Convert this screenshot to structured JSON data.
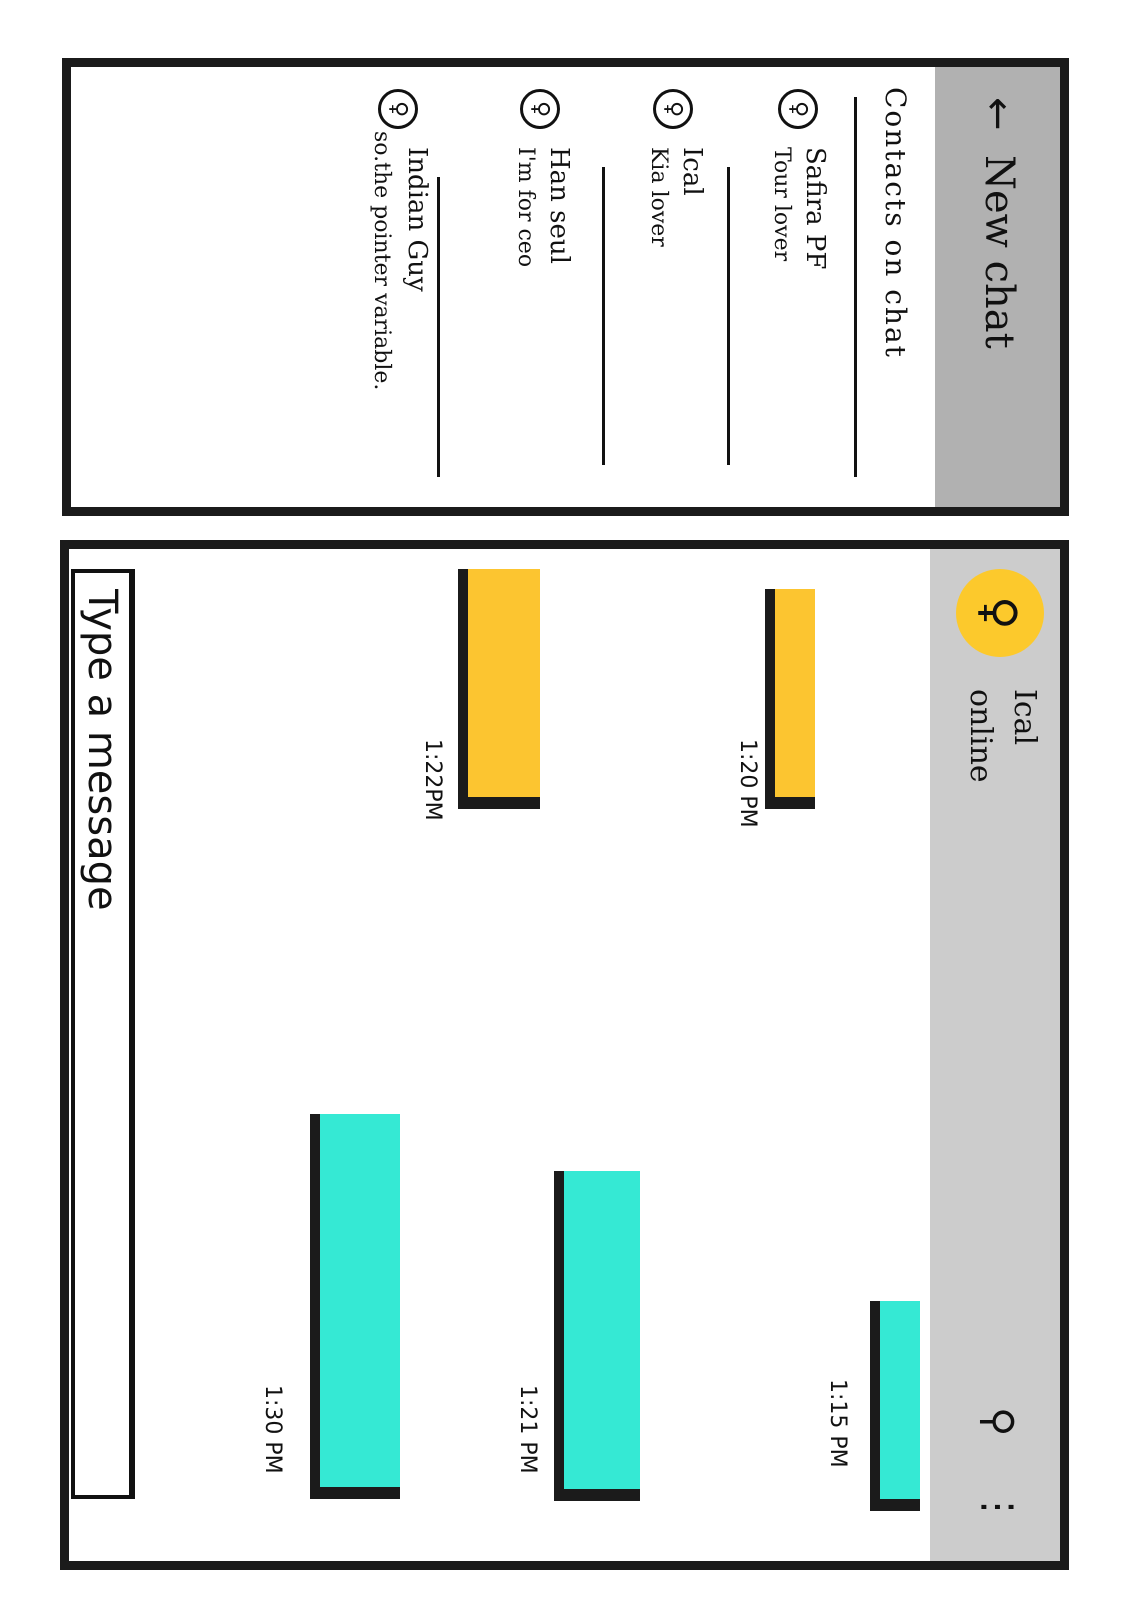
{
  "new_chat": {
    "title": "New chat",
    "back_icon": "arrow-left-icon",
    "section_label": "Contacts on chat",
    "contacts": [
      {
        "name": "Safira PF",
        "status": "Tour lover"
      },
      {
        "name": "Ical",
        "status": "Kia lover"
      },
      {
        "name": "Han seul",
        "status": "I'm for ceo"
      },
      {
        "name": "Indian Guy",
        "status": "so.the pointer variable."
      }
    ]
  },
  "chat": {
    "contact_name": "Ical",
    "presence": "online",
    "icons": [
      "search-icon",
      "more-vert-icon"
    ],
    "messages": [
      {
        "dir": "out",
        "time": "1:15 PM"
      },
      {
        "dir": "in",
        "time": "1:20 PM"
      },
      {
        "dir": "out",
        "time": "1:21 PM"
      },
      {
        "dir": "in",
        "time": "1:22PM"
      },
      {
        "dir": "out",
        "time": "1:30 PM"
      }
    ],
    "composer_placeholder": "Type a message"
  },
  "colors": {
    "incoming_bubble": "#fcc530",
    "outgoing_bubble": "#35e9d4",
    "avatar": "#fcc92c",
    "header_gray": "#b1b1b1",
    "chat_header_gray": "#cccccc"
  }
}
